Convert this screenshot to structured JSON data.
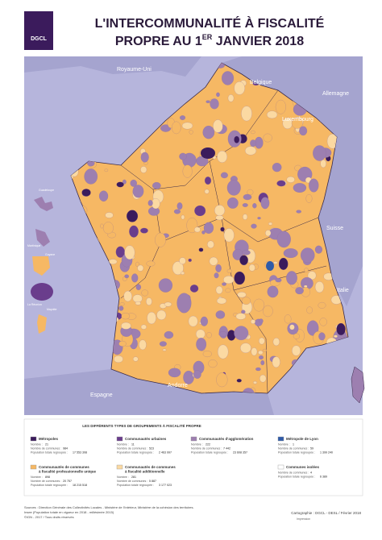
{
  "logo": "DGCL",
  "title": {
    "line1": "L'INTERCOMMUNALITÉ À FISCALITÉ",
    "line2_start": "PROPRE AU 1",
    "line2_sup": "ER",
    "line2_end": " JANVIER 2018"
  },
  "map": {
    "countries": [
      "Royaume-Uni",
      "Belgique",
      "Allemagne",
      "Luxembourg",
      "Suisse",
      "Italie",
      "Espagne",
      "Andorre"
    ],
    "insets": [
      "Guadeloupe",
      "Martinique",
      "Guyane",
      "La Réunion",
      "Mayotte"
    ]
  },
  "legend": {
    "heading": "LES DIFFÉRENTS TYPES DE GROUPEMENTS À FISCALITÉ PROPRE",
    "field_labels": {
      "count": "Nombre :",
      "communes": "Nombre de communes :",
      "population": "Population totale regroupée :"
    },
    "items": [
      {
        "name_lines": [
          "Métropoles"
        ],
        "color": "#3b1b5c",
        "count": "21",
        "communes": "984",
        "population": "17 553 308"
      },
      {
        "name_lines": [
          "Communautés urbaines"
        ],
        "color": "#6a3d8c",
        "count": "11",
        "communes": "523",
        "population": "2 463 997"
      },
      {
        "name_lines": [
          "Communautés d'agglomération"
        ],
        "color": "#9d7fb0",
        "count": "222",
        "communes": "7 442",
        "population": "23 608 357"
      },
      {
        "name_lines": [
          "Métropole de Lyon"
        ],
        "color": "#2f5ba8",
        "count": "1",
        "communes": "59",
        "population": "1 399 240"
      },
      {
        "name_lines": [
          "Communautés de communes",
          "à fiscalité professionnelle unique"
        ],
        "color": "#f6b864",
        "count": "898",
        "communes": "20 757",
        "population": "18 215 518"
      },
      {
        "name_lines": [
          "Communautés de communes",
          "à fiscalité additionnelle"
        ],
        "color": "#fbd9a2",
        "count": "281",
        "communes": "5 887",
        "population": "3 177 023"
      },
      {
        "name_lines": [
          "Communes isolées"
        ],
        "color": "#ffffff",
        "communes": "4",
        "population": "6 389"
      }
    ]
  },
  "sources": [
    "Sources : Direction Générale des Collectivités Locales - Ministère de l'Intérieur, Ministère de la cohésion des territoires.",
    "Insee (Population totale en vigueur en 2018 - millésimée 2015)",
    "©IGN - 2017 / Tous droits réservés"
  ],
  "credit": "Cartographie : DGCL - DESL / Février 2018",
  "print": "Impression"
}
